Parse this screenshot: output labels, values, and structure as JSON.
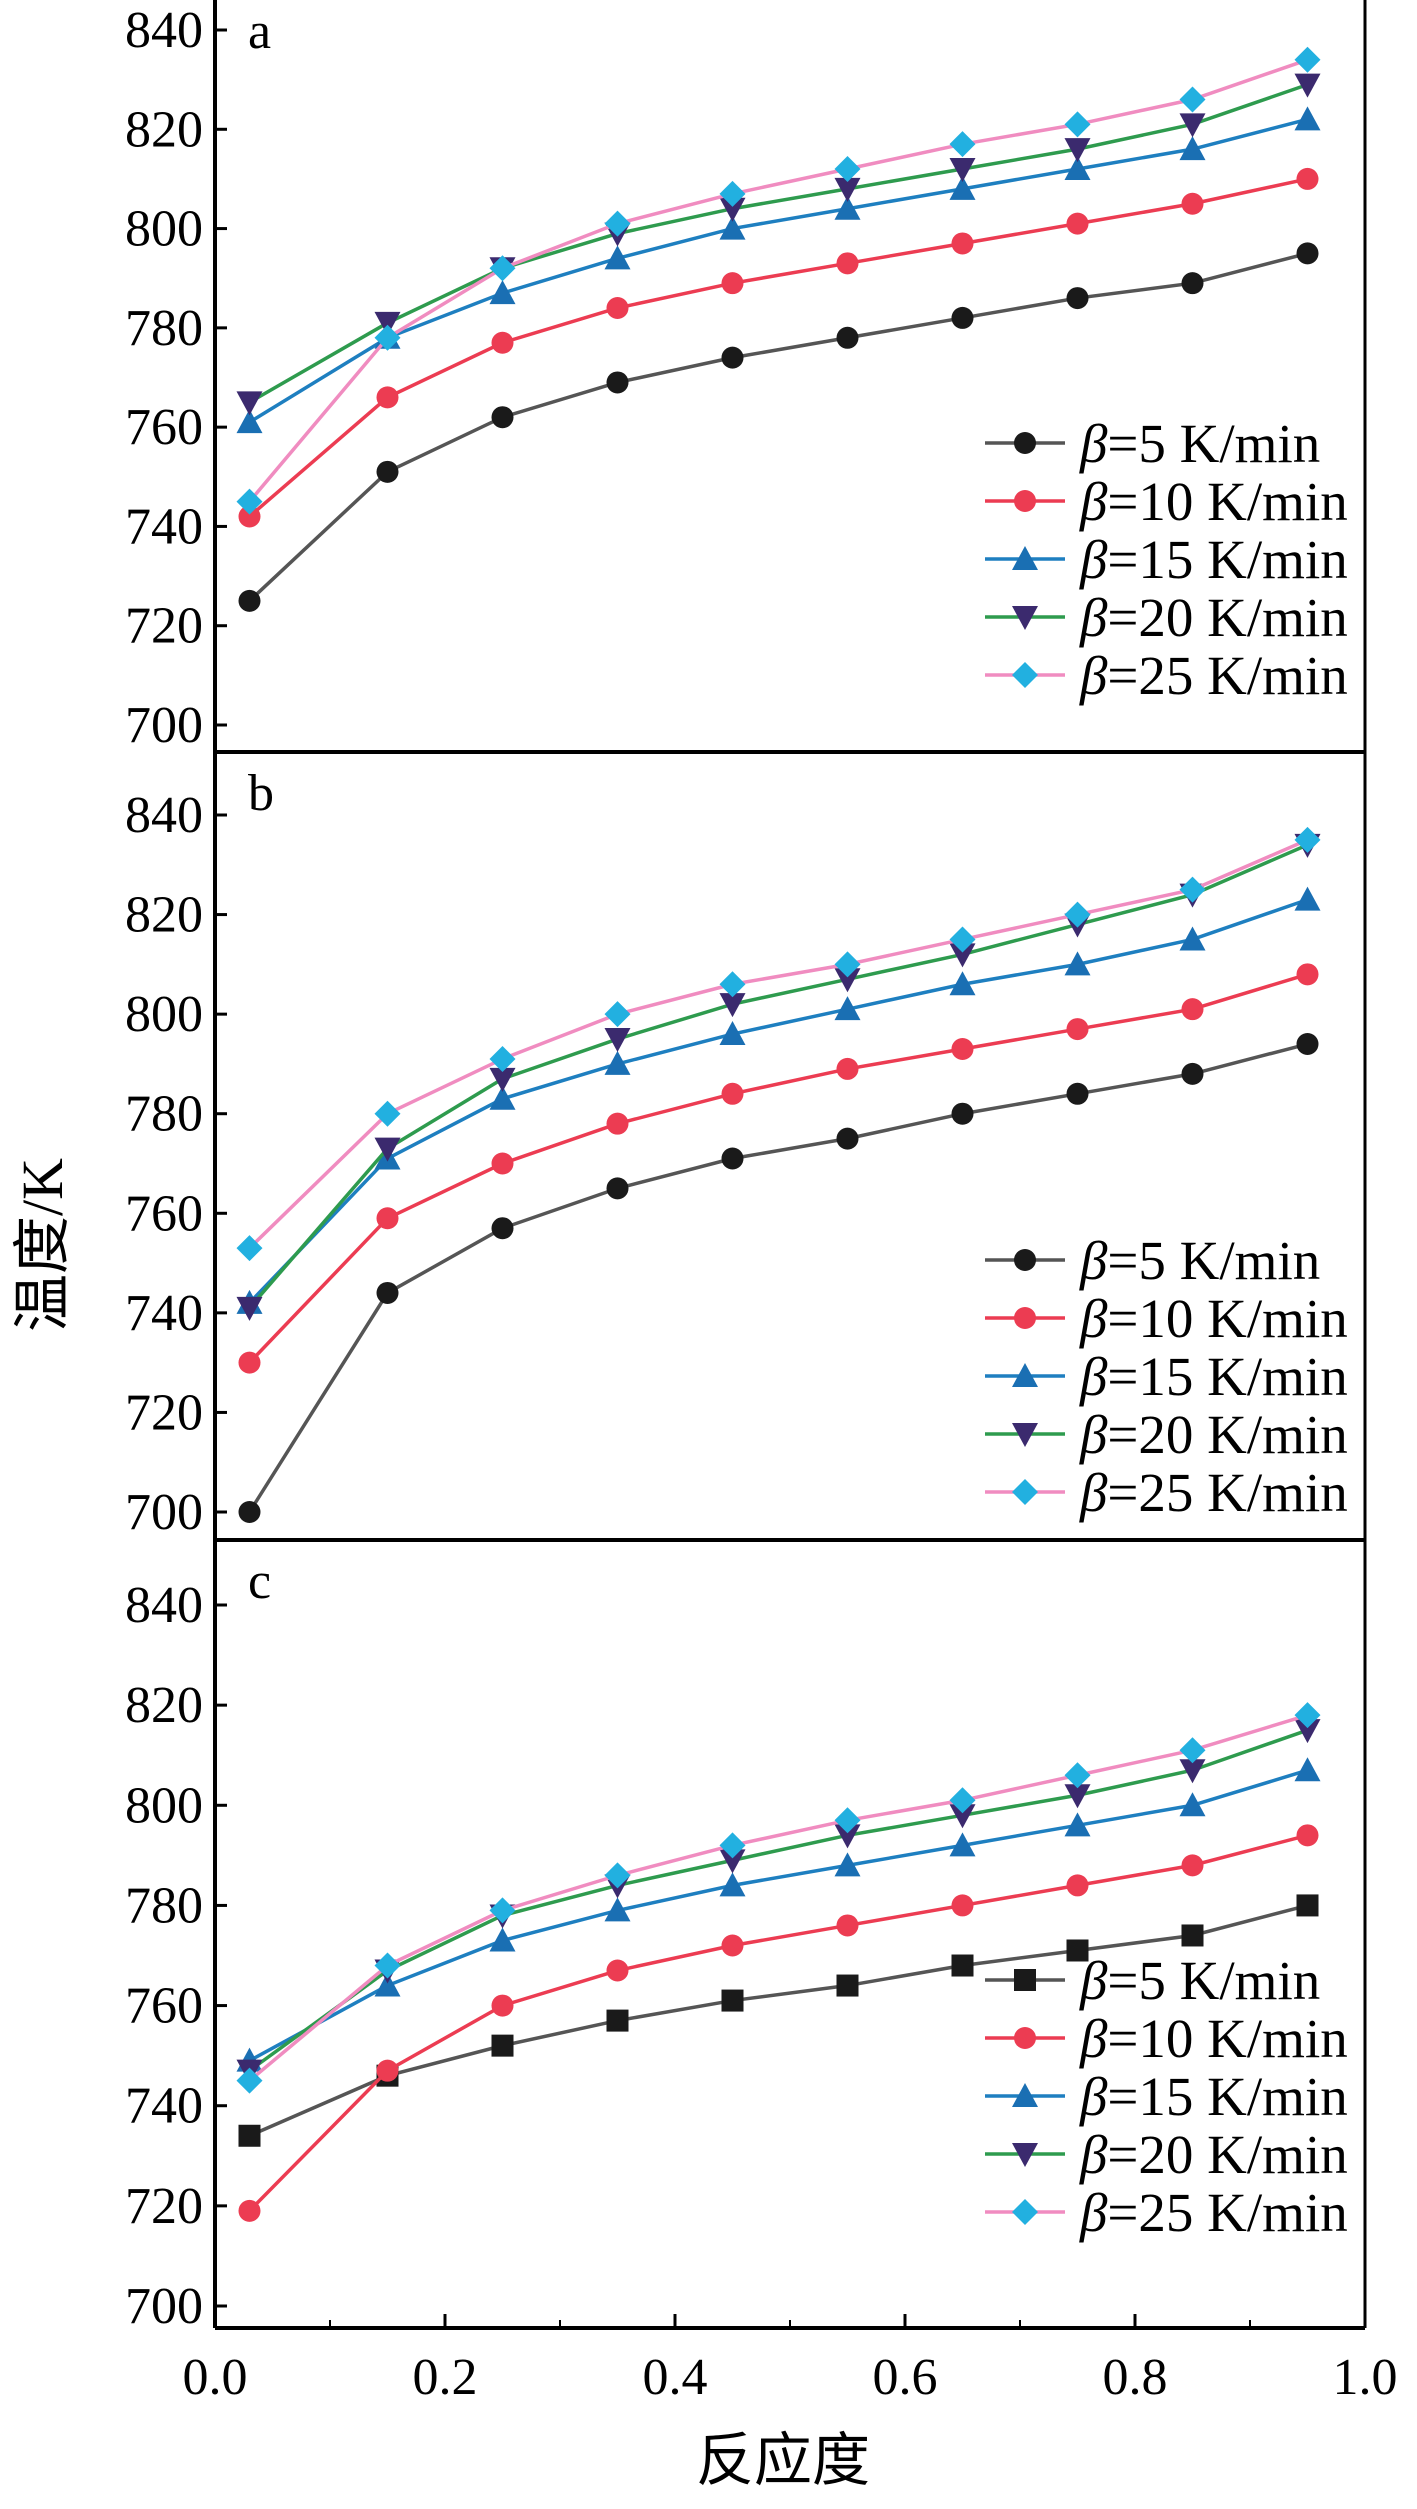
{
  "colors": {
    "s5": "#1a1a1a",
    "s10": "#ec3c52",
    "s15": "#1a6fb3",
    "s20": "#3b2a6e",
    "s25": "#22b0e0",
    "line15": "#1e7fc0",
    "line20": "#2e9b4e",
    "line25": "#f08cc0",
    "line5": "#555555",
    "frame": "#000000"
  },
  "figure": {
    "ylabel": "温度/K",
    "xlabel": "反应度"
  },
  "chart_data": [
    {
      "panel": "a",
      "type": "line",
      "x": [
        0.03,
        0.15,
        0.25,
        0.35,
        0.45,
        0.55,
        0.65,
        0.75,
        0.85,
        0.95
      ],
      "xlim": [
        0.0,
        1.0
      ],
      "ylim": [
        695,
        845
      ],
      "xticks": [
        "0.0",
        "0.2",
        "0.4",
        "0.6",
        "0.8",
        "1.0"
      ],
      "yticks": [
        "700",
        "720",
        "740",
        "760",
        "780",
        "800",
        "820",
        "840"
      ],
      "legend_position": "right",
      "series": [
        {
          "beta": "β",
          "rest": "=5 K/min",
          "marker": "circle",
          "values": [
            725,
            751,
            762,
            769,
            774,
            778,
            782,
            786,
            789,
            795
          ]
        },
        {
          "beta": "β",
          "rest": "=10 K/min",
          "marker": "circle",
          "values": [
            742,
            766,
            777,
            784,
            789,
            793,
            797,
            801,
            805,
            810
          ]
        },
        {
          "beta": "β",
          "rest": "=15 K/min",
          "marker": "triangle-up",
          "values": [
            761,
            778,
            787,
            794,
            800,
            804,
            808,
            812,
            816,
            822
          ]
        },
        {
          "beta": "β",
          "rest": "=20 K/min",
          "marker": "triangle-down",
          "values": [
            765,
            781,
            792,
            799,
            804,
            808,
            812,
            816,
            821,
            829
          ]
        },
        {
          "beta": "β",
          "rest": "=25 K/min",
          "marker": "diamond",
          "values": [
            745,
            778,
            792,
            801,
            807,
            812,
            817,
            821,
            826,
            834
          ]
        }
      ]
    },
    {
      "panel": "b",
      "type": "line",
      "x": [
        0.03,
        0.15,
        0.25,
        0.35,
        0.45,
        0.55,
        0.65,
        0.75,
        0.85,
        0.95
      ],
      "xlim": [
        0.0,
        1.0
      ],
      "ylim": [
        695,
        845
      ],
      "xticks": [
        "0.0",
        "0.2",
        "0.4",
        "0.6",
        "0.8",
        "1.0"
      ],
      "yticks": [
        "700",
        "720",
        "740",
        "760",
        "780",
        "800",
        "820",
        "840"
      ],
      "legend_position": "right",
      "series": [
        {
          "beta": "β",
          "rest": "=5 K/min",
          "marker": "circle",
          "values": [
            700,
            744,
            757,
            765,
            771,
            775,
            780,
            784,
            788,
            794
          ]
        },
        {
          "beta": "β",
          "rest": "=10 K/min",
          "marker": "circle",
          "values": [
            730,
            759,
            770,
            778,
            784,
            789,
            793,
            797,
            801,
            808
          ]
        },
        {
          "beta": "β",
          "rest": "=15 K/min",
          "marker": "triangle-up",
          "values": [
            742,
            771,
            783,
            790,
            796,
            801,
            806,
            810,
            815,
            823
          ]
        },
        {
          "beta": "β",
          "rest": "=20 K/min",
          "marker": "triangle-down",
          "values": [
            741,
            773,
            787,
            795,
            802,
            807,
            812,
            818,
            824,
            834
          ]
        },
        {
          "beta": "β",
          "rest": "=25 K/min",
          "marker": "diamond",
          "values": [
            753,
            780,
            791,
            800,
            806,
            810,
            815,
            820,
            825,
            835
          ]
        }
      ]
    },
    {
      "panel": "c",
      "type": "line",
      "x": [
        0.03,
        0.15,
        0.25,
        0.35,
        0.45,
        0.55,
        0.65,
        0.75,
        0.85,
        0.95
      ],
      "xlim": [
        0.0,
        1.0
      ],
      "ylim": [
        695,
        852
      ],
      "xticks": [
        "0.0",
        "0.2",
        "0.4",
        "0.6",
        "0.8",
        "1.0"
      ],
      "yticks": [
        "700",
        "720",
        "740",
        "760",
        "780",
        "800",
        "820",
        "840"
      ],
      "legend_position": "bottom-right",
      "series": [
        {
          "beta": "β",
          "rest": "=5 K/min",
          "marker": "square",
          "values": [
            734,
            746,
            752,
            757,
            761,
            764,
            768,
            771,
            774,
            780
          ]
        },
        {
          "beta": "β",
          "rest": "=10 K/min",
          "marker": "circle",
          "values": [
            719,
            747,
            760,
            767,
            772,
            776,
            780,
            784,
            788,
            794
          ]
        },
        {
          "beta": "β",
          "rest": "=15 K/min",
          "marker": "triangle-up",
          "values": [
            749,
            764,
            773,
            779,
            784,
            788,
            792,
            796,
            800,
            807
          ]
        },
        {
          "beta": "β",
          "rest": "=20 K/min",
          "marker": "triangle-down",
          "values": [
            747,
            767,
            778,
            784,
            789,
            794,
            798,
            802,
            807,
            815
          ]
        },
        {
          "beta": "β",
          "rest": "=25 K/min",
          "marker": "diamond",
          "values": [
            745,
            768,
            779,
            786,
            792,
            797,
            801,
            806,
            811,
            818
          ]
        }
      ]
    }
  ]
}
